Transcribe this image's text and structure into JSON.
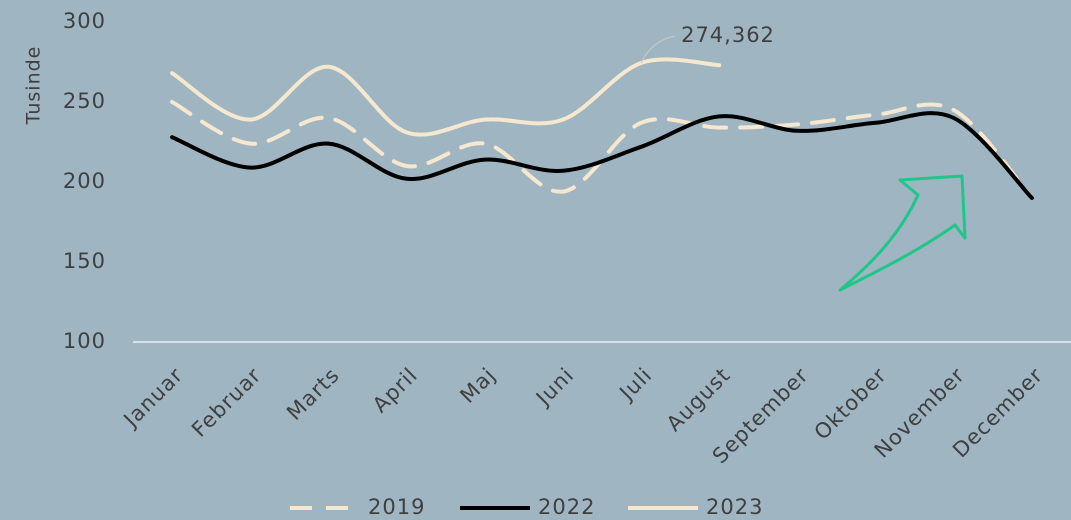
{
  "chart_data": {
    "type": "line",
    "y_axis_label": "Tusinde",
    "categories": [
      "Januar",
      "Februar",
      "Marts",
      "April",
      "Maj",
      "Juni",
      "Juli",
      "August",
      "September",
      "Oktober",
      "November",
      "December"
    ],
    "series": [
      {
        "name": "2019",
        "color": "#f6e7cf",
        "dashed": true,
        "values": [
          250,
          224,
          240,
          210,
          224,
          194,
          237,
          234,
          236,
          242,
          245,
          190
        ]
      },
      {
        "name": "2022",
        "color": "#000000",
        "dashed": false,
        "values": [
          228,
          209,
          224,
          202,
          214,
          207,
          222,
          241,
          232,
          237,
          240,
          190
        ]
      },
      {
        "name": "2023",
        "color": "#f6e7cf",
        "dashed": false,
        "values": [
          268,
          239,
          272,
          231,
          239,
          239,
          274.362,
          273,
          null,
          null,
          null,
          null
        ],
        "value_labels": [
          null,
          null,
          null,
          null,
          null,
          null,
          "274,362",
          null,
          null,
          null,
          null,
          null
        ]
      }
    ],
    "ylim": [
      100,
      300
    ],
    "yticks": [
      100,
      150,
      200,
      250,
      300
    ],
    "grid": false,
    "legend": "bottom"
  }
}
